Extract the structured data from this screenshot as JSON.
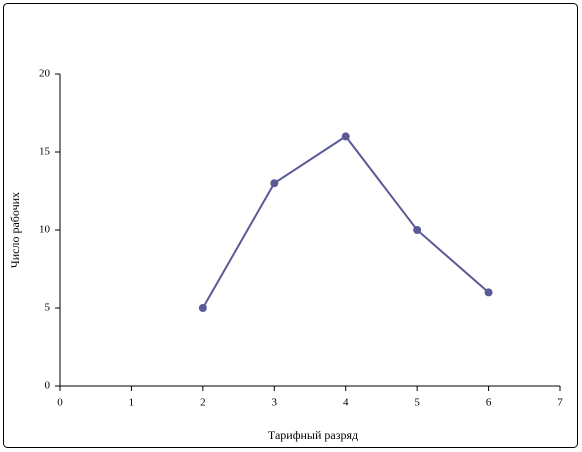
{
  "chart_data": {
    "type": "line",
    "x_label": "Тарифный разряд",
    "y_label": "Число рабочих",
    "x": [
      2,
      3,
      4,
      5,
      6
    ],
    "series": [
      {
        "color": "#5a5a96",
        "values": [
          5,
          13,
          16,
          10,
          6
        ]
      }
    ],
    "xlim": [
      0,
      7
    ],
    "xticks": [
      0,
      1,
      2,
      3,
      4,
      5,
      6,
      7
    ],
    "ylim": [
      0,
      20
    ],
    "yticks": [
      0,
      5,
      10,
      15,
      20
    ],
    "grid": false,
    "markers": true
  }
}
